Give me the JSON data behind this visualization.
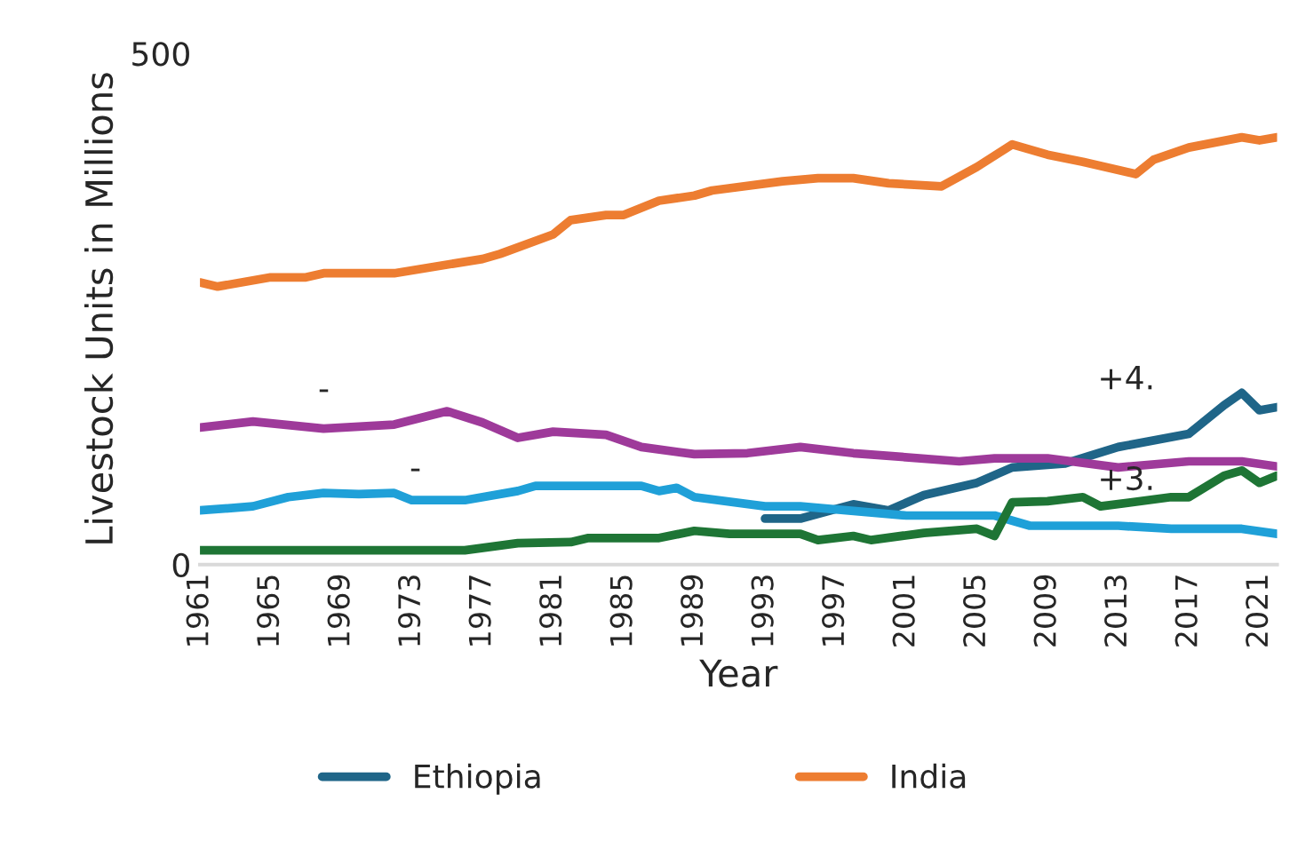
{
  "chart_data": {
    "type": "line",
    "xlabel": "Year",
    "ylabel": "Livestock Units in Millions",
    "xlim": [
      1961,
      2022
    ],
    "xticks": [
      1961,
      1965,
      1969,
      1973,
      1977,
      1981,
      1985,
      1989,
      1993,
      1997,
      2001,
      2005,
      2009,
      2013,
      2017,
      2021
    ],
    "ylim": [
      0,
      500
    ],
    "yticks": [
      0,
      500
    ],
    "grid": false,
    "legend": "bottom",
    "marker": "none",
    "line_style": "solid",
    "series": [
      {
        "name": "Ethiopia",
        "color": "#1f6588",
        "x": [
          1993,
          1995,
          1998,
          2000,
          2002,
          2005,
          2007,
          2010,
          2013,
          2017,
          2019,
          2020,
          2021,
          2022
        ],
        "values": [
          45,
          45,
          59,
          53,
          68,
          80,
          95,
          99,
          115,
          128,
          156,
          168,
          151,
          154
        ]
      },
      {
        "name": "India",
        "color": "#ed7d31",
        "x": [
          1961,
          1962,
          1965,
          1967,
          1968,
          1972,
          1977,
          1978,
          1981,
          1982,
          1984,
          1985,
          1987,
          1989,
          1990,
          1994,
          1996,
          1998,
          2000,
          2003,
          2005,
          2007,
          2009,
          2011,
          2014,
          2015,
          2017,
          2020,
          2021,
          2022
        ],
        "values": [
          276,
          272,
          281,
          281,
          285,
          285,
          299,
          304,
          323,
          337,
          342,
          342,
          356,
          361,
          366,
          375,
          378,
          378,
          373,
          370,
          389,
          411,
          401,
          394,
          382,
          396,
          408,
          418,
          415,
          418
        ]
      },
      {
        "color": "#9e3a9a",
        "x": [
          1961,
          1964,
          1968,
          1972,
          1975,
          1977,
          1979,
          1981,
          1984,
          1986,
          1989,
          1992,
          1995,
          1998,
          2004,
          2006,
          2009,
          2013,
          2017,
          2020,
          2022
        ],
        "values": [
          134,
          140,
          133,
          137,
          150,
          139,
          124,
          130,
          127,
          115,
          108,
          109,
          115,
          109,
          101,
          104,
          104,
          95,
          101,
          101,
          96
        ]
      },
      {
        "color": "#1fa0d8",
        "x": [
          1961,
          1964,
          1966,
          1968,
          1970,
          1972,
          1973,
          1976,
          1979,
          1980,
          1986,
          1987,
          1988,
          1989,
          1993,
          1995,
          2001,
          2006,
          2008,
          2013,
          2016,
          2020,
          2022
        ],
        "values": [
          53,
          57,
          66,
          70,
          69,
          70,
          63,
          63,
          72,
          77,
          77,
          72,
          75,
          66,
          57,
          57,
          48,
          48,
          38,
          38,
          35,
          35,
          30
        ]
      },
      {
        "color": "#1e7535",
        "x": [
          1961,
          1976,
          1979,
          1982,
          1983,
          1987,
          1989,
          1991,
          1995,
          1996,
          1998,
          1999,
          2002,
          2005,
          2006,
          2007,
          2009,
          2011,
          2012,
          2016,
          2017,
          2019,
          2020,
          2021,
          2022
        ],
        "values": [
          14,
          14,
          21,
          22,
          26,
          26,
          33,
          30,
          30,
          24,
          28,
          24,
          31,
          35,
          28,
          61,
          62,
          66,
          57,
          66,
          66,
          87,
          92,
          80,
          87
        ]
      }
    ],
    "annotations": [
      "-",
      "-",
      "+4.",
      "+3."
    ]
  }
}
